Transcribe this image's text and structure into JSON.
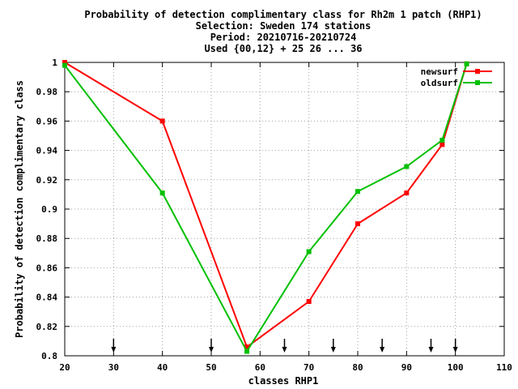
{
  "chart_data": {
    "type": "line",
    "title_lines": [
      "Probability of detection complimentary class  for Rh2m 1 patch (RHP1)",
      "Selection: Sweden    174 stations",
      "Period: 20210716-20210724",
      "Used {00,12} + 25 26 ... 36"
    ],
    "xlabel": "classes RHP1",
    "ylabel": "Probability of detection complimentary class",
    "xlim": [
      20,
      110
    ],
    "ylim": [
      0.8,
      1.0
    ],
    "xticks": [
      20,
      30,
      40,
      50,
      60,
      70,
      80,
      90,
      100,
      110
    ],
    "yticks": [
      0.8,
      0.82,
      0.84,
      0.86,
      0.88,
      0.9,
      0.92,
      0.94,
      0.96,
      0.98,
      1.0
    ],
    "xtick_labels": [
      "20",
      "30",
      "40",
      "50",
      "60",
      "70",
      "80",
      "90",
      "100",
      "110"
    ],
    "ytick_labels": [
      "0.8",
      "0.82",
      "0.84",
      "0.86",
      "0.88",
      "0.9",
      "0.92",
      "0.94",
      "0.96",
      "0.98",
      "1"
    ],
    "grid": true,
    "legend_position": "top-right",
    "arrow_markers_x": [
      30,
      50,
      65,
      75,
      85,
      95,
      100
    ],
    "series": [
      {
        "name": "newsurf",
        "color": "#ff0000",
        "points": [
          [
            20,
            1.0
          ],
          [
            40,
            0.96
          ],
          [
            57.3,
            0.806
          ],
          [
            70,
            0.837
          ],
          [
            80,
            0.89
          ],
          [
            90,
            0.911
          ],
          [
            97.3,
            0.944
          ],
          [
            102.3,
            0.999
          ]
        ]
      },
      {
        "name": "oldsurf",
        "color": "#00c000",
        "points": [
          [
            20,
            0.998
          ],
          [
            40,
            0.911
          ],
          [
            57.3,
            0.803
          ],
          [
            70,
            0.871
          ],
          [
            80,
            0.912
          ],
          [
            90,
            0.929
          ],
          [
            97.3,
            0.947
          ],
          [
            102.3,
            0.999
          ]
        ]
      }
    ]
  }
}
